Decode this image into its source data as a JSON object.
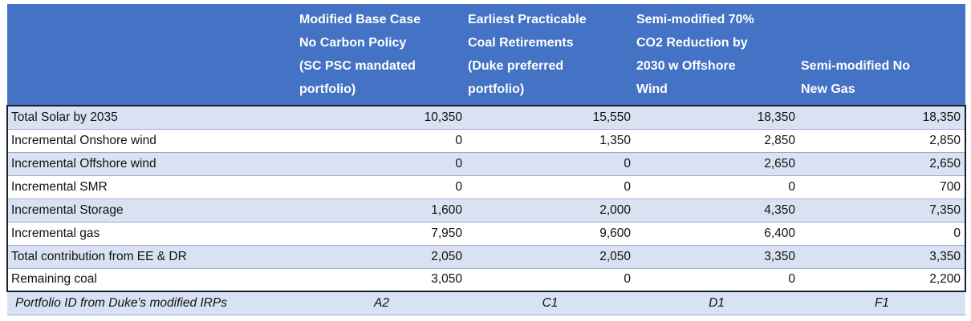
{
  "theme": {
    "header-bg": "#4472C4",
    "header-fg": "#FFFFFF",
    "band": "#D9E2F3",
    "line": "#9BACC9",
    "dark": "#1A1F2B",
    "ink": "#111111",
    "page": "#FFFFFF"
  },
  "table": {
    "corner_header": "",
    "column_headers": [
      "Modified Base Case\nNo Carbon Policy\n(SC PSC mandated\nportfolio)",
      "Earliest Practicable\nCoal Retirements\n(Duke preferred\nportfolio)",
      "Semi-modified 70%\nCO2 Reduction by\n2030 w Offshore\nWind",
      "Semi-modified No\nNew Gas"
    ],
    "rows": [
      {
        "label": "Total Solar by 2035",
        "values": [
          "10,350",
          "15,550",
          "18,350",
          "18,350"
        ]
      },
      {
        "label": "Incremental Onshore wind",
        "values": [
          "0",
          "1,350",
          "2,850",
          "2,850"
        ]
      },
      {
        "label": "Incremental Offshore wind",
        "values": [
          "0",
          "0",
          "2,650",
          "2,650"
        ]
      },
      {
        "label": "Incremental SMR",
        "values": [
          "0",
          "0",
          "0",
          "700"
        ]
      },
      {
        "label": "Incremental Storage",
        "values": [
          "1,600",
          "2,000",
          "4,350",
          "7,350"
        ]
      },
      {
        "label": "Incremental gas",
        "values": [
          "7,950",
          "9,600",
          "6,400",
          "0"
        ]
      },
      {
        "label": "Total contribution from EE & DR",
        "values": [
          "2,050",
          "2,050",
          "3,350",
          "3,350"
        ]
      },
      {
        "label": "Remaining coal",
        "values": [
          "3,050",
          "0",
          "0",
          "2,200"
        ]
      }
    ],
    "footer_row": {
      "label": "Portfolio ID from Duke's modified IRPs",
      "values": [
        "A2",
        "C1",
        "D1",
        "F1"
      ]
    }
  }
}
